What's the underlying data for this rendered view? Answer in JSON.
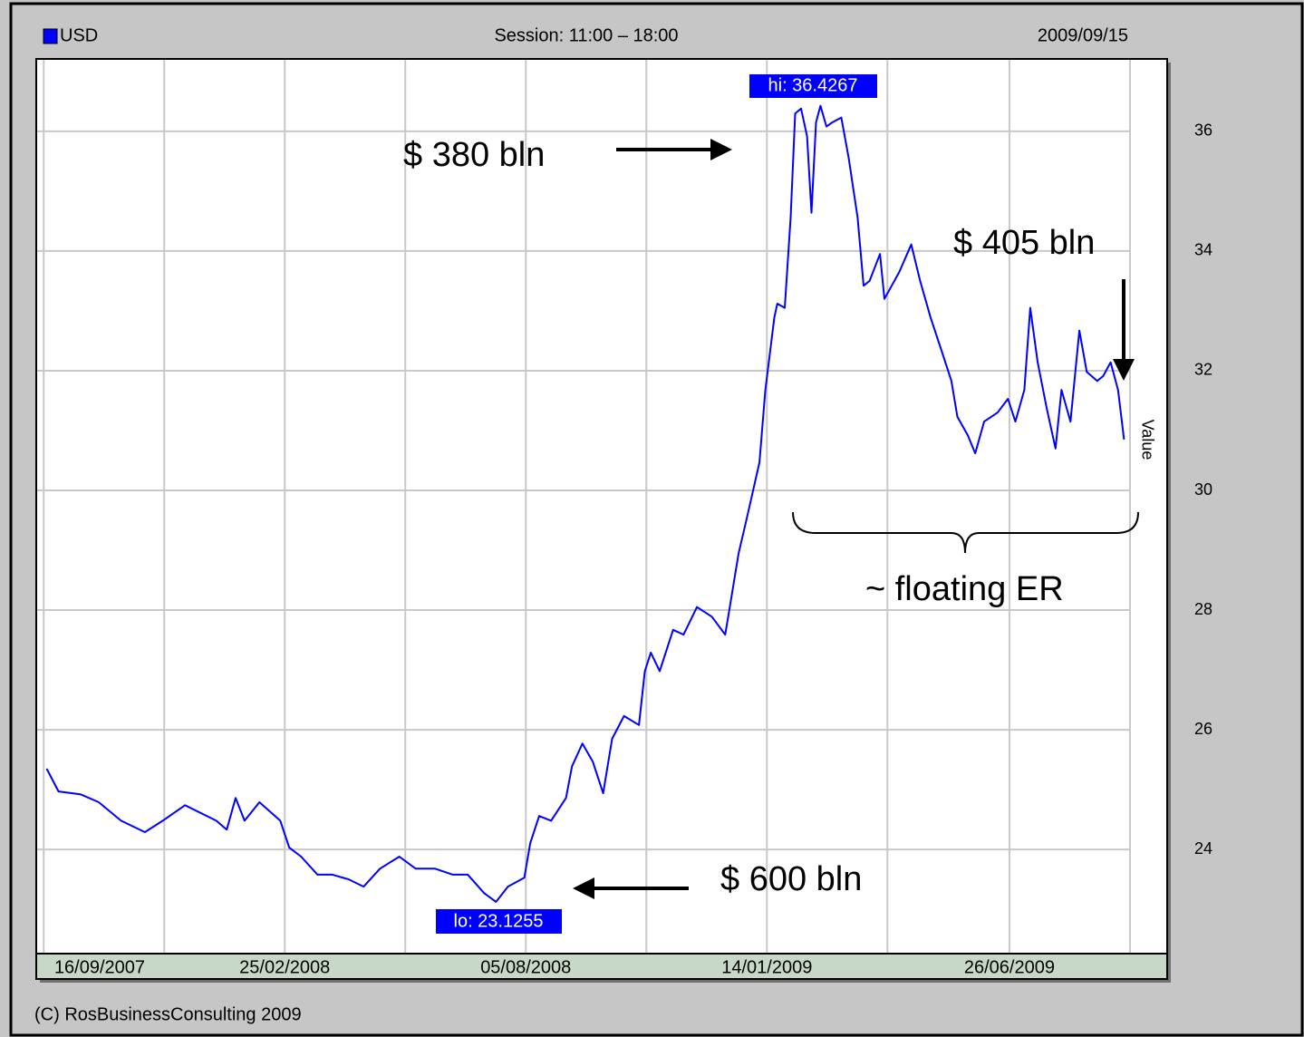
{
  "chart_data": {
    "type": "line",
    "legend": "USD",
    "subtitle": "Session: 11:00 – 18:00",
    "date": "2009/09/15",
    "y_label": "Value",
    "footer": "(C) RosBusinessConsulting 2009",
    "grid": true,
    "x": [
      "18/09/2007",
      "26/09/2007",
      "11/10/2007",
      "23/10/2007",
      "07/11/2007",
      "23/11/2007",
      "05/12/2007",
      "20/12/2007",
      "10/01/2008",
      "17/01/2008",
      "23/01/2008",
      "29/01/2008",
      "08/02/2008",
      "22/02/2008",
      "28/02/2008",
      "07/03/2008",
      "18/03/2008",
      "28/03/2008",
      "08/04/2008",
      "18/04/2008",
      "29/04/2008",
      "12/05/2008",
      "23/05/2008",
      "05/06/2008",
      "17/06/2008",
      "27/06/2008",
      "08/07/2008",
      "16/07/2008",
      "24/07/2008",
      "04/08/2008",
      "08/08/2008",
      "14/08/2008",
      "22/08/2008",
      "01/09/2008",
      "05/09/2008",
      "12/09/2008",
      "19/09/2008",
      "26/09/2008",
      "02/10/2008",
      "10/10/2008",
      "20/10/2008",
      "24/10/2008",
      "28/10/2008",
      "03/11/2008",
      "12/11/2008",
      "19/11/2008",
      "28/11/2008",
      "08/12/2008",
      "17/12/2008",
      "19/12/2008",
      "26/12/2008",
      "31/12/2008",
      "09/01/2009",
      "13/01/2009",
      "19/01/2009",
      "21/01/2009",
      "26/01/2009",
      "30/01/2009",
      "02/02/2009",
      "06/02/2009",
      "10/02/2009",
      "13/02/2009",
      "16/02/2009",
      "19/02/2009",
      "23/02/2009",
      "27/02/2009",
      "05/03/2009",
      "10/03/2009",
      "16/03/2009",
      "20/03/2009",
      "24/03/2009",
      "31/03/2009",
      "03/04/2009",
      "13/04/2009",
      "21/04/2009",
      "27/04/2009",
      "04/05/2009",
      "12/05/2009",
      "18/05/2009",
      "22/05/2009",
      "29/05/2009",
      "03/06/2009",
      "09/06/2009",
      "18/06/2009",
      "25/06/2009",
      "30/06/2009",
      "06/07/2009",
      "10/07/2009",
      "15/07/2009",
      "21/07/2009",
      "27/07/2009",
      "31/07/2009",
      "06/08/2009",
      "12/08/2009",
      "17/08/2009",
      "24/08/2009",
      "28/08/2009",
      "02/09/2009",
      "07/09/2009",
      "11/09/2009"
    ],
    "series": [
      {
        "name": "USD",
        "color": "#0000ff",
        "values": [
          25.35,
          24.97,
          24.92,
          24.79,
          24.48,
          24.29,
          24.48,
          24.74,
          24.48,
          24.33,
          24.86,
          24.48,
          24.79,
          24.48,
          24.03,
          23.88,
          23.58,
          23.58,
          23.5,
          23.38,
          23.68,
          23.88,
          23.68,
          23.68,
          23.58,
          23.58,
          23.27,
          23.1255,
          23.38,
          23.53,
          24.11,
          24.56,
          24.48,
          24.86,
          25.39,
          25.77,
          25.47,
          24.94,
          25.85,
          26.23,
          26.08,
          26.98,
          27.29,
          26.98,
          27.67,
          27.59,
          28.05,
          27.89,
          27.59,
          27.89,
          28.95,
          29.48,
          30.47,
          31.68,
          32.89,
          33.12,
          33.05,
          34.56,
          36.3,
          36.38,
          35.92,
          34.64,
          36.15,
          36.4267,
          36.08,
          36.15,
          36.23,
          35.55,
          34.56,
          33.42,
          33.5,
          33.95,
          33.2,
          33.65,
          34.11,
          33.5,
          32.89,
          32.29,
          31.83,
          31.23,
          30.92,
          30.62,
          31.15,
          31.3,
          31.53,
          31.15,
          31.68,
          33.05,
          32.14,
          31.38,
          30.7,
          31.68,
          31.15,
          32.67,
          31.98,
          31.83,
          31.91,
          32.14,
          31.68,
          30.85
        ]
      }
    ],
    "xlim": [
      "11/09/2007",
      "10/10/2009"
    ],
    "xticks": [
      "16/09/2007",
      {
        "value": "06/12/2007",
        "label": null
      },
      "25/02/2008",
      {
        "value": "16/05/2008",
        "label": null
      },
      "05/08/2008",
      {
        "value": "25/10/2008",
        "label": null
      },
      "14/01/2009",
      {
        "value": "05/04/2009",
        "label": null
      },
      "26/06/2009",
      {
        "value": "15/09/2009",
        "label": null
      }
    ],
    "ylim": [
      22.26,
      37.21
    ],
    "yticks": [
      24,
      26,
      28,
      30,
      32,
      34,
      36
    ],
    "annotations": {
      "hi": "hi: 36.4267",
      "lo": "lo: 23.1255",
      "a380": "$ 380 bln",
      "a405": "$ 405 bln",
      "a600": "$ 600 bln",
      "floating": "~ floating ER"
    }
  }
}
